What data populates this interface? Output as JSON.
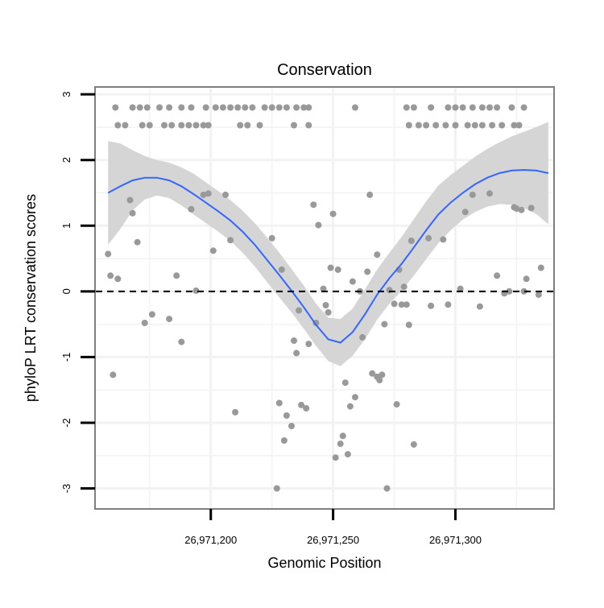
{
  "chart_data": {
    "type": "scatter",
    "title": "Conservation",
    "xlabel": "Genomic Position",
    "ylabel": "phyloP LRT conservation scores",
    "xlim": [
      26971153,
      26971340
    ],
    "ylim": [
      -3.3,
      3.1
    ],
    "x_ticks": [
      26971200,
      26971250,
      26971300
    ],
    "x_tick_labels": [
      "26,971,200",
      "26,971,250",
      "26,971,300"
    ],
    "y_ticks": [
      -3,
      -2,
      -1,
      0,
      1,
      2,
      3
    ],
    "y_tick_labels": [
      "-3",
      "-2",
      "-1",
      "0",
      "1",
      "2",
      "3"
    ],
    "reference_line": {
      "y": 0,
      "style": "dashed"
    },
    "colors": {
      "points": "#999999",
      "smooth_line": "#3366ff",
      "ribbon": "#d3d3d3",
      "panel_border": "#7f7f7f",
      "grid": "#f2f2f2"
    },
    "points": [
      [
        26971161,
        2.8
      ],
      [
        26971168,
        2.8
      ],
      [
        26971171,
        2.8
      ],
      [
        26971174,
        2.8
      ],
      [
        26971179,
        2.8
      ],
      [
        26971183,
        2.8
      ],
      [
        26971188,
        2.8
      ],
      [
        26971192,
        2.8
      ],
      [
        26971198,
        2.8
      ],
      [
        26971202,
        2.8
      ],
      [
        26971205,
        2.8
      ],
      [
        26971208,
        2.8
      ],
      [
        26971211,
        2.8
      ],
      [
        26971214,
        2.8
      ],
      [
        26971217,
        2.8
      ],
      [
        26971222,
        2.8
      ],
      [
        26971225,
        2.8
      ],
      [
        26971228,
        2.8
      ],
      [
        26971231,
        2.8
      ],
      [
        26971235,
        2.8
      ],
      [
        26971238,
        2.8
      ],
      [
        26971240,
        2.8
      ],
      [
        26971259,
        2.8
      ],
      [
        26971162,
        2.53
      ],
      [
        26971165,
        2.53
      ],
      [
        26971172,
        2.53
      ],
      [
        26971175,
        2.53
      ],
      [
        26971181,
        2.53
      ],
      [
        26971184,
        2.53
      ],
      [
        26971188,
        2.53
      ],
      [
        26971191,
        2.53
      ],
      [
        26971194,
        2.53
      ],
      [
        26971197,
        2.53
      ],
      [
        26971199,
        2.53
      ],
      [
        26971212,
        2.53
      ],
      [
        26971215,
        2.53
      ],
      [
        26971220,
        2.53
      ],
      [
        26971234,
        2.53
      ],
      [
        26971240,
        2.53
      ],
      [
        26971280,
        2.8
      ],
      [
        26971283,
        2.8
      ],
      [
        26971290,
        2.8
      ],
      [
        26971297,
        2.8
      ],
      [
        26971300,
        2.8
      ],
      [
        26971303,
        2.8
      ],
      [
        26971307,
        2.8
      ],
      [
        26971311,
        2.8
      ],
      [
        26971314,
        2.8
      ],
      [
        26971317,
        2.8
      ],
      [
        26971323,
        2.8
      ],
      [
        26971328,
        2.8
      ],
      [
        26971281,
        2.53
      ],
      [
        26971285,
        2.53
      ],
      [
        26971288,
        2.53
      ],
      [
        26971292,
        2.53
      ],
      [
        26971296,
        2.53
      ],
      [
        26971300,
        2.53
      ],
      [
        26971305,
        2.53
      ],
      [
        26971308,
        2.53
      ],
      [
        26971311,
        2.53
      ],
      [
        26971315,
        2.53
      ],
      [
        26971319,
        2.53
      ],
      [
        26971324,
        2.53
      ],
      [
        26971326,
        2.53
      ],
      [
        26971158,
        0.57
      ],
      [
        26971159,
        0.24
      ],
      [
        26971160,
        -1.27
      ],
      [
        26971162,
        0.19
      ],
      [
        26971167,
        1.39
      ],
      [
        26971168,
        1.19
      ],
      [
        26971170,
        0.75
      ],
      [
        26971173,
        -0.48
      ],
      [
        26971176,
        -0.35
      ],
      [
        26971183,
        -0.42
      ],
      [
        26971186,
        0.24
      ],
      [
        26971188,
        -0.77
      ],
      [
        26971192,
        1.25
      ],
      [
        26971194,
        0.01
      ],
      [
        26971197,
        1.47
      ],
      [
        26971199,
        1.49
      ],
      [
        26971201,
        0.62
      ],
      [
        26971206,
        1.47
      ],
      [
        26971208,
        0.78
      ],
      [
        26971210,
        -1.84
      ],
      [
        26971225,
        0.81
      ],
      [
        26971227,
        -3.0
      ],
      [
        26971228,
        -1.7
      ],
      [
        26971229,
        0.33
      ],
      [
        26971230,
        -2.27
      ],
      [
        26971231,
        -1.89
      ],
      [
        26971233,
        -2.05
      ],
      [
        26971234,
        -0.75
      ],
      [
        26971235,
        -0.94
      ],
      [
        26971236,
        -0.29
      ],
      [
        26971237,
        -1.73
      ],
      [
        26971239,
        -1.78
      ],
      [
        26971240,
        -0.8
      ],
      [
        26971242,
        1.32
      ],
      [
        26971243,
        -0.48
      ],
      [
        26971244,
        1.01
      ],
      [
        26971246,
        0.04
      ],
      [
        26971247,
        -0.21
      ],
      [
        26971248,
        -0.32
      ],
      [
        26971249,
        0.36
      ],
      [
        26971250,
        1.18
      ],
      [
        26971251,
        -2.53
      ],
      [
        26971252,
        0.33
      ],
      [
        26971253,
        -2.32
      ],
      [
        26971254,
        -2.2
      ],
      [
        26971255,
        -1.39
      ],
      [
        26971256,
        -2.48
      ],
      [
        26971257,
        -1.75
      ],
      [
        26971258,
        0.15
      ],
      [
        26971259,
        -1.61
      ],
      [
        26971261,
        0.0
      ],
      [
        26971262,
        -0.7
      ],
      [
        26971264,
        0.3
      ],
      [
        26971265,
        1.47
      ],
      [
        26971266,
        -1.25
      ],
      [
        26971268,
        0.56
      ],
      [
        26971268,
        -1.3
      ],
      [
        26971269,
        -1.35
      ],
      [
        26971270,
        -1.27
      ],
      [
        26971271,
        -0.5
      ],
      [
        26971272,
        -3.0
      ],
      [
        26971273,
        0.02
      ],
      [
        26971275,
        -0.19
      ],
      [
        26971276,
        -1.72
      ],
      [
        26971277,
        0.33
      ],
      [
        26971278,
        -0.2
      ],
      [
        26971279,
        0.07
      ],
      [
        26971280,
        -0.2
      ],
      [
        26971281,
        -0.51
      ],
      [
        26971282,
        0.77
      ],
      [
        26971283,
        -2.33
      ],
      [
        26971289,
        0.81
      ],
      [
        26971290,
        -0.22
      ],
      [
        26971295,
        0.79
      ],
      [
        26971297,
        -0.2
      ],
      [
        26971302,
        0.04
      ],
      [
        26971304,
        1.21
      ],
      [
        26971307,
        1.47
      ],
      [
        26971310,
        -0.23
      ],
      [
        26971314,
        1.49
      ],
      [
        26971317,
        0.24
      ],
      [
        26971320,
        -0.03
      ],
      [
        26971322,
        0.0
      ],
      [
        26971324,
        1.28
      ],
      [
        26971325,
        1.26
      ],
      [
        26971327,
        1.24
      ],
      [
        26971328,
        0.0
      ],
      [
        26971329,
        0.19
      ],
      [
        26971331,
        1.27
      ],
      [
        26971334,
        -0.05
      ],
      [
        26971335,
        0.36
      ]
    ],
    "smooth_line": {
      "x": [
        26971158,
        26971163,
        26971168,
        26971173,
        26971178,
        26971183,
        26971188,
        26971193,
        26971198,
        26971203,
        26971208,
        26971213,
        26971218,
        26971223,
        26971228,
        26971233,
        26971238,
        26971243,
        26971248,
        26971253,
        26971258,
        26971263,
        26971268,
        26971273,
        26971278,
        26971283,
        26971288,
        26971293,
        26971298,
        26971303,
        26971308,
        26971313,
        26971318,
        26971323,
        26971328,
        26971333,
        26971338
      ],
      "y": [
        1.5,
        1.6,
        1.69,
        1.73,
        1.73,
        1.69,
        1.6,
        1.48,
        1.35,
        1.22,
        1.08,
        0.91,
        0.71,
        0.48,
        0.25,
        0.01,
        -0.24,
        -0.51,
        -0.73,
        -0.78,
        -0.62,
        -0.35,
        -0.05,
        0.2,
        0.42,
        0.67,
        0.93,
        1.17,
        1.35,
        1.5,
        1.63,
        1.73,
        1.8,
        1.84,
        1.85,
        1.84,
        1.8
      ]
    },
    "ribbon": {
      "upper": [
        2.29,
        2.25,
        2.15,
        2.06,
        2.0,
        1.96,
        1.89,
        1.79,
        1.66,
        1.53,
        1.39,
        1.23,
        1.04,
        0.82,
        0.59,
        0.34,
        0.09,
        -0.19,
        -0.4,
        -0.42,
        -0.26,
        0.03,
        0.33,
        0.59,
        0.83,
        1.1,
        1.37,
        1.61,
        1.77,
        1.91,
        2.05,
        2.17,
        2.27,
        2.36,
        2.43,
        2.5,
        2.58
      ],
      "lower": [
        0.71,
        0.95,
        1.23,
        1.4,
        1.46,
        1.42,
        1.31,
        1.17,
        1.04,
        0.91,
        0.77,
        0.59,
        0.38,
        0.14,
        -0.09,
        -0.32,
        -0.57,
        -0.83,
        -1.06,
        -1.14,
        -0.98,
        -0.73,
        -0.43,
        -0.19,
        0.01,
        0.24,
        0.49,
        0.73,
        0.93,
        1.09,
        1.21,
        1.29,
        1.33,
        1.32,
        1.27,
        1.18,
        1.02
      ]
    }
  }
}
